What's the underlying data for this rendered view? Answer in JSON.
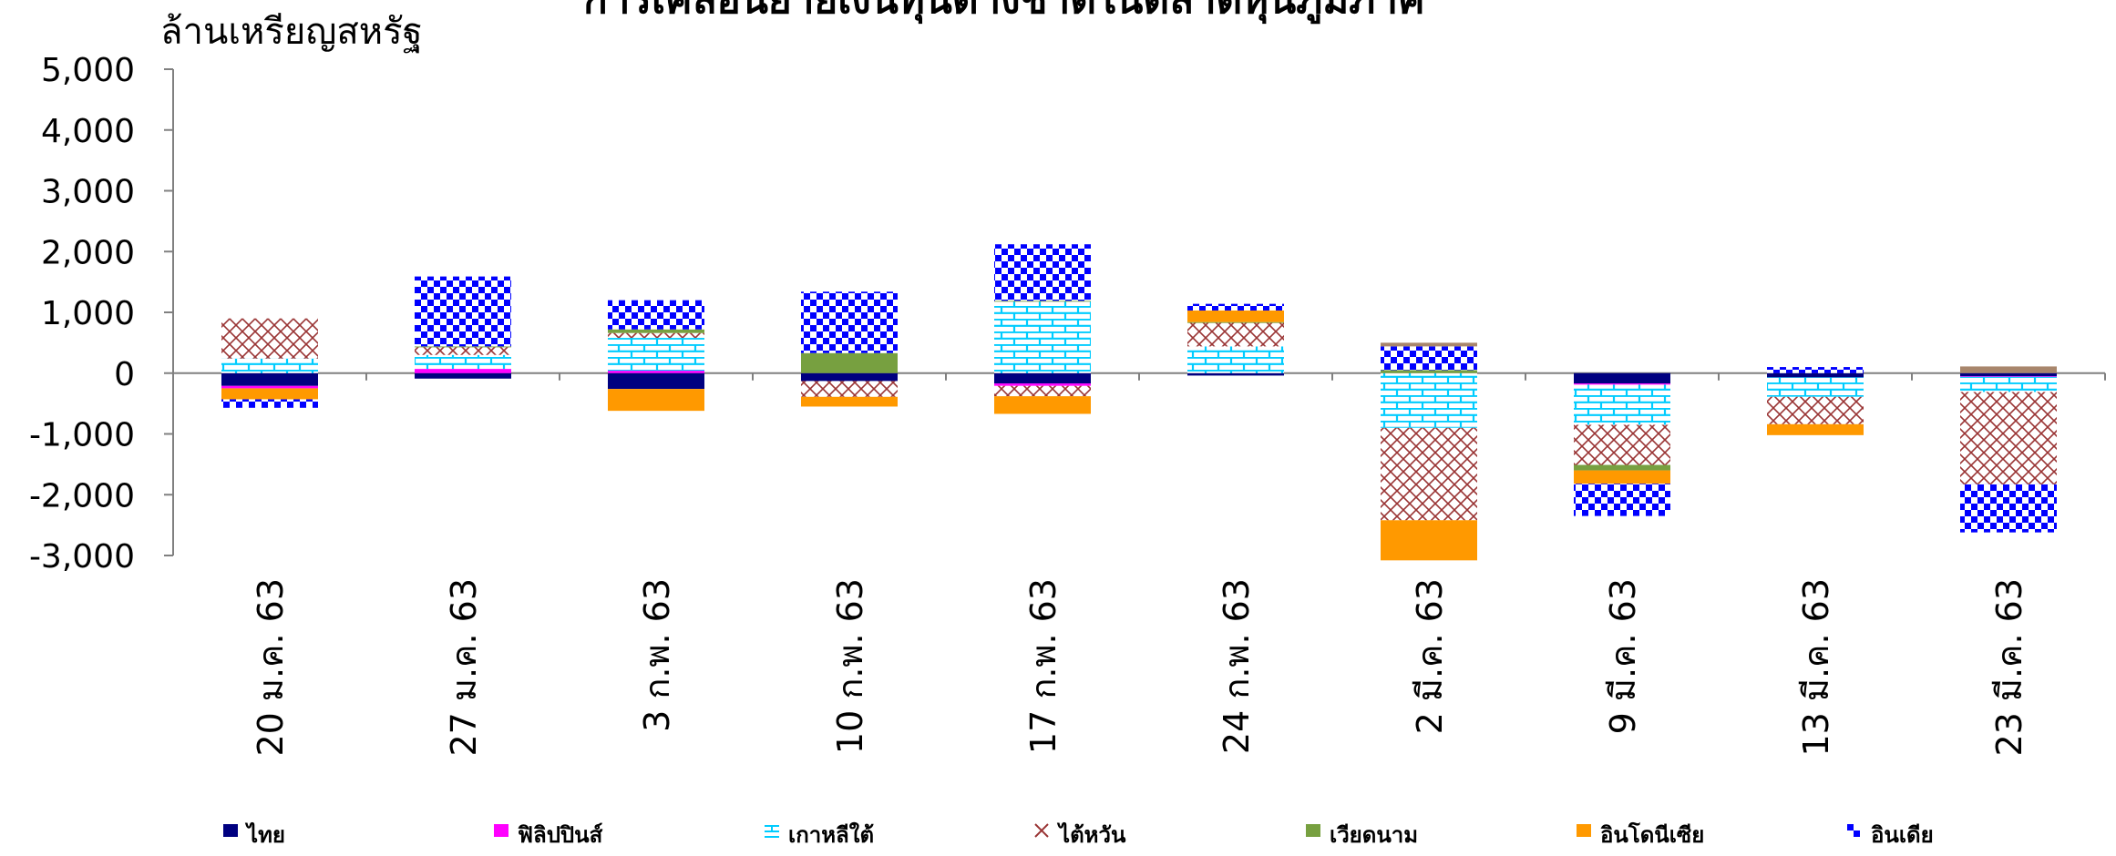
{
  "chart_data": {
    "type": "bar",
    "stacked": true,
    "title": "การเคลื่อนย้ายเงินทุนต่างชาติในตลาดหุ้นภูมิภาค",
    "ylabel": "ล้านเหรียญสหรัฐ",
    "xlabel": "",
    "ylim": [
      -3000,
      5000
    ],
    "yticks": [
      "5,000",
      "4,000",
      "3,000",
      "2,000",
      "1,000",
      "0",
      "-1,000",
      "-2,000",
      "-3,000"
    ],
    "ytick_values": [
      5000,
      4000,
      3000,
      2000,
      1000,
      0,
      -1000,
      -2000,
      -3000
    ],
    "grid": false,
    "legend_position": "bottom",
    "categories": [
      "20 ม.ค. 63",
      "27 ม.ค. 63",
      "3 ก.พ. 63",
      "10 ก.พ. 63",
      "17 ก.พ. 63",
      "24 ก.พ. 63",
      "2 มี.ค. 63",
      "9 มี.ค. 63",
      "13 มี.ค. 63",
      "23 มี.ค. 63"
    ],
    "series": [
      {
        "name": "ไทย",
        "color": "#000080",
        "pattern": "solid",
        "values": [
          -210,
          -90,
          -260,
          -130,
          -170,
          -40,
          0,
          -170,
          -70,
          -50
        ]
      },
      {
        "name": "ฟิลิปปินส์",
        "color": "#ff00ff",
        "pattern": "solid",
        "values": [
          -40,
          70,
          40,
          0,
          -40,
          0,
          0,
          -20,
          0,
          -10
        ]
      },
      {
        "name": "เกาหลีใต้",
        "color": "#00ccff",
        "pattern": "brick",
        "values": [
          240,
          230,
          540,
          0,
          1180,
          440,
          -900,
          -660,
          -320,
          -250
        ]
      },
      {
        "name": "ไต้หวัน",
        "color": "#993333",
        "pattern": "cross",
        "values": [
          660,
          130,
          80,
          -260,
          -170,
          390,
          -1520,
          -660,
          -450,
          -1520
        ]
      },
      {
        "name": "เวียดนาม",
        "color": "#77a040",
        "pattern": "solid",
        "values": [
          0,
          10,
          60,
          330,
          10,
          10,
          50,
          -90,
          0,
          0
        ]
      },
      {
        "name": "อินโดนีเซีย",
        "color": "#ff9900",
        "pattern": "solid",
        "values": [
          -180,
          0,
          -360,
          -160,
          -290,
          190,
          -660,
          -220,
          -180,
          0
        ]
      },
      {
        "name": "อินเดีย",
        "color": "#0000ff",
        "pattern": "checker",
        "values": [
          -140,
          1150,
          480,
          1010,
          930,
          110,
          390,
          -530,
          100,
          -790
        ]
      },
      {
        "name": "",
        "color": "#a8866c",
        "pattern": "solid",
        "values": [
          0,
          0,
          0,
          0,
          0,
          0,
          60,
          0,
          0,
          110
        ]
      }
    ]
  }
}
